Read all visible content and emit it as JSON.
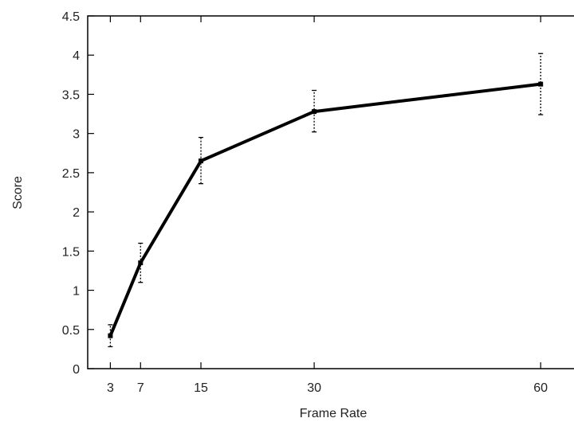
{
  "chart_data": {
    "type": "line",
    "title": "",
    "xlabel": "Frame Rate",
    "ylabel": "Score",
    "x_ticks": [
      3,
      7,
      15,
      30,
      60
    ],
    "y_ticks": [
      "0",
      "0.5",
      "1",
      "1.5",
      "2",
      "2.5",
      "3",
      "3.5",
      "4",
      "4.5"
    ],
    "xlim": [
      0,
      66
    ],
    "ylim": [
      0,
      4.5
    ],
    "grid": false,
    "legend": "none",
    "series": [
      {
        "x": [
          3,
          7,
          15,
          30,
          60
        ],
        "y": [
          0.42,
          1.35,
          2.65,
          3.28,
          3.63
        ],
        "error_low": [
          0.28,
          1.1,
          2.36,
          3.02,
          3.24
        ],
        "error_high": [
          0.56,
          1.6,
          2.95,
          3.55,
          4.02
        ],
        "color": "#000000"
      }
    ]
  }
}
